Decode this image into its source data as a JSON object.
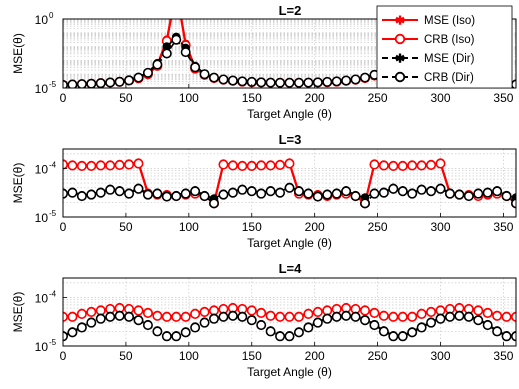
{
  "chart_data": [
    {
      "type": "line",
      "title": "L=2",
      "xlabel": "Target Angle (θ)",
      "ylabel": "MSE(θ)",
      "scale": "log",
      "xlim": [
        0,
        360
      ],
      "ylim_exp": [
        -5,
        0
      ],
      "xticks": [
        "0",
        "50",
        "100",
        "150",
        "200",
        "250",
        "300",
        "350"
      ],
      "yticks": [
        {
          "base": "10",
          "exp": "0",
          "value_exp": 0
        },
        {
          "base": "10",
          "exp": "-5",
          "value_exp": -5
        }
      ],
      "grid": true,
      "legend": {
        "position": "top-right",
        "entries": [
          "MSE (Iso)",
          "CRB (Iso)",
          "MSE (Dir)",
          "CRB (Dir)"
        ]
      },
      "x": [
        0,
        7.5,
        15,
        22.5,
        30,
        37.5,
        45,
        52.5,
        60,
        67.5,
        75,
        82.5,
        90,
        97.5,
        105,
        112.5,
        120,
        127.5,
        135,
        142.5,
        150,
        157.5,
        165,
        172.5,
        180,
        187.5,
        195,
        202.5,
        210,
        217.5,
        225,
        232.5,
        240,
        247.5,
        255,
        262.5,
        270,
        277.5,
        285,
        292.5,
        300,
        307.5,
        315,
        322.5,
        330,
        337.5,
        345,
        352.5,
        360
      ],
      "series": [
        {
          "style": "MSE (Iso)",
          "log10": [
            -4.75,
            -4.72,
            -4.7,
            -4.66,
            -4.62,
            -4.58,
            -4.52,
            -4.4,
            -4.25,
            -3.95,
            -3.3,
            -1.5,
            2.2,
            -1.8,
            -3.5,
            -4.0,
            -4.25,
            -4.38,
            -4.45,
            -4.52,
            -4.55,
            -4.58,
            -4.6,
            -4.6,
            -4.6,
            -4.6,
            -4.6,
            -4.58,
            -4.55,
            -4.52,
            -4.45,
            -4.38,
            -4.25,
            -4.05,
            -3.6,
            -2.4,
            1.5,
            -1.0,
            -3.0,
            -3.8,
            -4.15,
            -4.35,
            -4.45,
            -4.52,
            -4.58,
            -4.63,
            -4.66,
            -4.7,
            -4.72
          ]
        },
        {
          "style": "CRB (Iso)",
          "log10": [
            -4.78,
            -4.75,
            -4.72,
            -4.69,
            -4.65,
            -4.6,
            -4.55,
            -4.45,
            -4.3,
            -4.0,
            -3.4,
            -1.6,
            2.0,
            -1.9,
            -3.6,
            -4.05,
            -4.28,
            -4.4,
            -4.48,
            -4.54,
            -4.58,
            -4.6,
            -4.62,
            -4.62,
            -4.62,
            -4.62,
            -4.62,
            -4.6,
            -4.58,
            -4.54,
            -4.48,
            -4.4,
            -4.28,
            -4.1,
            -3.65,
            -2.5,
            1.4,
            -1.1,
            -3.1,
            -3.85,
            -4.18,
            -4.38,
            -4.48,
            -4.55,
            -4.6,
            -4.65,
            -4.68,
            -4.72,
            -4.75
          ]
        },
        {
          "style": "MSE (Dir)",
          "log10": [
            -4.75,
            -4.72,
            -4.7,
            -4.66,
            -4.62,
            -4.58,
            -4.52,
            -4.4,
            -4.2,
            -3.85,
            -3.2,
            -2.0,
            -1.3,
            -2.1,
            -3.4,
            -3.95,
            -4.22,
            -4.35,
            -4.43,
            -4.5,
            -4.54,
            -4.57,
            -4.59,
            -4.6,
            -4.6,
            -4.6,
            -4.59,
            -4.57,
            -4.54,
            -4.5,
            -4.43,
            -4.35,
            -4.22,
            -4.0,
            -3.5,
            -2.6,
            -1.3,
            -2.3,
            -3.3,
            -3.85,
            -4.15,
            -4.35,
            -4.45,
            -4.52,
            -4.58,
            -4.63,
            -4.66,
            -4.7,
            -4.72
          ]
        },
        {
          "style": "CRB (Dir)",
          "log10": [
            -4.78,
            -4.75,
            -4.72,
            -4.69,
            -4.65,
            -4.6,
            -4.55,
            -4.45,
            -4.25,
            -3.9,
            -3.3,
            -2.5,
            -1.5,
            -2.4,
            -3.5,
            -4.0,
            -4.25,
            -4.38,
            -4.46,
            -4.52,
            -4.56,
            -4.59,
            -4.61,
            -4.62,
            -4.62,
            -4.62,
            -4.61,
            -4.59,
            -4.56,
            -4.52,
            -4.46,
            -4.38,
            -4.25,
            -4.05,
            -3.55,
            -2.8,
            -1.5,
            -2.6,
            -3.4,
            -3.9,
            -4.18,
            -4.38,
            -4.48,
            -4.55,
            -4.6,
            -4.65,
            -4.68,
            -4.72,
            -4.75
          ]
        }
      ]
    },
    {
      "type": "line",
      "title": "L=3",
      "xlabel": "Target Angle (θ)",
      "ylabel": "MSE(θ)",
      "scale": "log",
      "xlim": [
        0,
        360
      ],
      "ylim_exp": [
        -5,
        -3.6
      ],
      "xticks": [
        "0",
        "50",
        "100",
        "150",
        "200",
        "250",
        "300",
        "350"
      ],
      "yticks": [
        {
          "base": "10",
          "exp": "-4",
          "value_exp": -4
        },
        {
          "base": "10",
          "exp": "-5",
          "value_exp": -5
        }
      ],
      "grid": true,
      "x": [
        0,
        7.5,
        15,
        22.5,
        30,
        37.5,
        45,
        52.5,
        60,
        67.5,
        75,
        82.5,
        90,
        97.5,
        105,
        112.5,
        120,
        127.5,
        135,
        142.5,
        150,
        157.5,
        165,
        172.5,
        180,
        187.5,
        195,
        202.5,
        210,
        217.5,
        225,
        232.5,
        240,
        247.5,
        255,
        262.5,
        270,
        277.5,
        285,
        292.5,
        300,
        307.5,
        315,
        322.5,
        330,
        337.5,
        345,
        352.5,
        360
      ],
      "series": [
        {
          "style": "MSE (Iso)",
          "log10": [
            -3.9,
            -3.92,
            -3.93,
            -3.93,
            -3.92,
            -3.92,
            -3.91,
            -3.9,
            -3.88,
            -4.5,
            -4.52,
            -4.53,
            -4.55,
            -4.52,
            -4.5,
            -4.55,
            -4.7,
            -3.9,
            -3.92,
            -3.93,
            -3.93,
            -3.92,
            -3.92,
            -3.91,
            -3.88,
            -4.5,
            -4.52,
            -4.53,
            -4.55,
            -4.52,
            -4.5,
            -4.55,
            -4.7,
            -3.9,
            -3.92,
            -3.93,
            -3.93,
            -3.92,
            -3.92,
            -3.91,
            -3.88,
            -4.5,
            -4.52,
            -4.53,
            -4.55,
            -4.52,
            -4.5,
            -4.55,
            -4.7
          ]
        },
        {
          "style": "CRB (Iso)",
          "log10": [
            -3.92,
            -3.94,
            -3.95,
            -3.95,
            -3.94,
            -3.94,
            -3.93,
            -3.92,
            -3.9,
            -4.52,
            -4.54,
            -4.55,
            -4.57,
            -4.54,
            -4.52,
            -4.57,
            -4.72,
            -3.92,
            -3.94,
            -3.95,
            -3.95,
            -3.94,
            -3.94,
            -3.93,
            -3.9,
            -4.52,
            -4.54,
            -4.55,
            -4.57,
            -4.54,
            -4.52,
            -4.57,
            -4.72,
            -3.92,
            -3.94,
            -3.95,
            -3.95,
            -3.94,
            -3.94,
            -3.93,
            -3.9,
            -4.52,
            -4.54,
            -4.55,
            -4.57,
            -4.54,
            -4.52,
            -4.57,
            -4.72
          ]
        },
        {
          "style": "MSE (Dir)",
          "log10": [
            -4.5,
            -4.48,
            -4.55,
            -4.52,
            -4.48,
            -4.42,
            -4.45,
            -4.5,
            -4.4,
            -4.52,
            -4.5,
            -4.56,
            -4.55,
            -4.5,
            -4.45,
            -4.55,
            -4.62,
            -4.52,
            -4.48,
            -4.42,
            -4.45,
            -4.5,
            -4.45,
            -4.48,
            -4.38,
            -4.45,
            -4.5,
            -4.56,
            -4.52,
            -4.5,
            -4.45,
            -4.55,
            -4.6,
            -4.5,
            -4.48,
            -4.4,
            -4.45,
            -4.5,
            -4.42,
            -4.45,
            -4.4,
            -4.5,
            -4.52,
            -4.55,
            -4.5,
            -4.48,
            -4.45,
            -4.55,
            -4.6
          ]
        },
        {
          "style": "CRB (Dir)",
          "log10": [
            -4.52,
            -4.5,
            -4.57,
            -4.54,
            -4.5,
            -4.44,
            -4.47,
            -4.52,
            -4.42,
            -4.54,
            -4.52,
            -4.58,
            -4.57,
            -4.52,
            -4.47,
            -4.57,
            -4.72,
            -4.54,
            -4.5,
            -4.44,
            -4.47,
            -4.52,
            -4.47,
            -4.5,
            -4.4,
            -4.47,
            -4.52,
            -4.58,
            -4.54,
            -4.52,
            -4.47,
            -4.57,
            -4.72,
            -4.52,
            -4.5,
            -4.42,
            -4.47,
            -4.52,
            -4.44,
            -4.47,
            -4.42,
            -4.52,
            -4.54,
            -4.57,
            -4.52,
            -4.5,
            -4.47,
            -4.57,
            -4.72
          ]
        }
      ]
    },
    {
      "type": "line",
      "title": "L=4",
      "xlabel": "Target Angle (θ)",
      "ylabel": "MSE(θ)",
      "scale": "log",
      "xlim": [
        0,
        360
      ],
      "ylim_exp": [
        -5,
        -3.6
      ],
      "xticks": [
        "0",
        "50",
        "100",
        "150",
        "200",
        "250",
        "300",
        "350"
      ],
      "yticks": [
        {
          "base": "10",
          "exp": "-4",
          "value_exp": -4
        },
        {
          "base": "10",
          "exp": "-5",
          "value_exp": -5
        }
      ],
      "grid": true,
      "x": [
        0,
        7.5,
        15,
        22.5,
        30,
        37.5,
        45,
        52.5,
        60,
        67.5,
        75,
        82.5,
        90,
        97.5,
        105,
        112.5,
        120,
        127.5,
        135,
        142.5,
        150,
        157.5,
        165,
        172.5,
        180,
        187.5,
        195,
        202.5,
        210,
        217.5,
        225,
        232.5,
        240,
        247.5,
        255,
        262.5,
        270,
        277.5,
        285,
        292.5,
        300,
        307.5,
        315,
        322.5,
        330,
        337.5,
        345,
        352.5,
        360
      ],
      "series": [
        {
          "style": "MSE (Iso)",
          "log10": [
            -4.38,
            -4.38,
            -4.32,
            -4.28,
            -4.25,
            -4.22,
            -4.2,
            -4.22,
            -4.25,
            -4.3,
            -4.36,
            -4.38,
            -4.38,
            -4.38,
            -4.32,
            -4.28,
            -4.25,
            -4.22,
            -4.2,
            -4.22,
            -4.25,
            -4.3,
            -4.36,
            -4.38,
            -4.38,
            -4.38,
            -4.32,
            -4.28,
            -4.25,
            -4.22,
            -4.2,
            -4.22,
            -4.25,
            -4.3,
            -4.36,
            -4.38,
            -4.38,
            -4.38,
            -4.32,
            -4.28,
            -4.25,
            -4.22,
            -4.2,
            -4.22,
            -4.25,
            -4.3,
            -4.36,
            -4.38,
            -4.38
          ]
        },
        {
          "style": "CRB (Iso)",
          "log10": [
            -4.4,
            -4.4,
            -4.34,
            -4.3,
            -4.27,
            -4.24,
            -4.22,
            -4.24,
            -4.27,
            -4.32,
            -4.38,
            -4.4,
            -4.4,
            -4.4,
            -4.34,
            -4.3,
            -4.27,
            -4.24,
            -4.22,
            -4.24,
            -4.27,
            -4.32,
            -4.38,
            -4.4,
            -4.4,
            -4.4,
            -4.34,
            -4.3,
            -4.27,
            -4.24,
            -4.22,
            -4.24,
            -4.27,
            -4.32,
            -4.38,
            -4.4,
            -4.4,
            -4.4,
            -4.34,
            -4.3,
            -4.27,
            -4.24,
            -4.22,
            -4.24,
            -4.27,
            -4.32,
            -4.38,
            -4.4,
            -4.4
          ]
        },
        {
          "style": "MSE (Dir)",
          "log10": [
            -4.78,
            -4.7,
            -4.6,
            -4.5,
            -4.42,
            -4.38,
            -4.36,
            -4.38,
            -4.45,
            -4.55,
            -4.68,
            -4.78,
            -4.78,
            -4.7,
            -4.6,
            -4.5,
            -4.42,
            -4.38,
            -4.36,
            -4.38,
            -4.45,
            -4.55,
            -4.68,
            -4.78,
            -4.78,
            -4.7,
            -4.6,
            -4.5,
            -4.42,
            -4.38,
            -4.36,
            -4.38,
            -4.45,
            -4.55,
            -4.68,
            -4.78,
            -4.78,
            -4.7,
            -4.6,
            -4.5,
            -4.42,
            -4.38,
            -4.36,
            -4.38,
            -4.45,
            -4.55,
            -4.68,
            -4.78,
            -4.78
          ]
        },
        {
          "style": "CRB (Dir)",
          "log10": [
            -4.8,
            -4.72,
            -4.62,
            -4.52,
            -4.44,
            -4.4,
            -4.38,
            -4.4,
            -4.47,
            -4.57,
            -4.7,
            -4.8,
            -4.8,
            -4.72,
            -4.62,
            -4.52,
            -4.44,
            -4.4,
            -4.38,
            -4.4,
            -4.47,
            -4.57,
            -4.7,
            -4.8,
            -4.8,
            -4.72,
            -4.62,
            -4.52,
            -4.44,
            -4.4,
            -4.38,
            -4.4,
            -4.47,
            -4.57,
            -4.7,
            -4.8,
            -4.8,
            -4.72,
            -4.62,
            -4.52,
            -4.44,
            -4.4,
            -4.38,
            -4.4,
            -4.47,
            -4.57,
            -4.7,
            -4.8,
            -4.8
          ]
        }
      ]
    }
  ],
  "colors": {
    "iso": "#ff0000",
    "dir": "#000000",
    "grid": "#cfcfcf",
    "axis": "#000000"
  }
}
